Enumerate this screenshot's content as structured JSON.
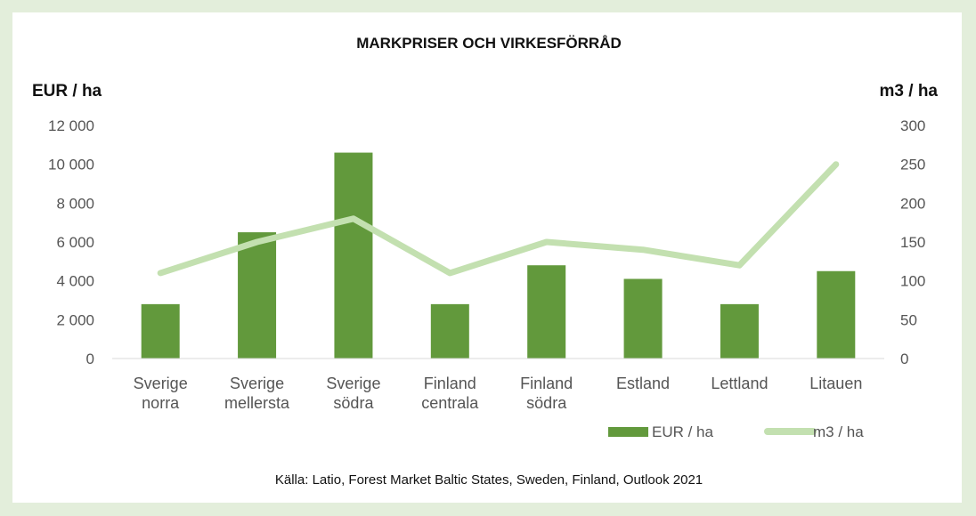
{
  "chart_data": {
    "type": "bar+line",
    "title": "MARKPRISER OCH VIRKESFÖRRÅD",
    "y_left_label": "EUR / ha",
    "y_right_label": "m3 / ha",
    "y_left_ticks": [
      "0",
      "2 000",
      "4 000",
      "6 000",
      "8 000",
      "10 000",
      "12 000"
    ],
    "y_right_ticks": [
      "0",
      "50",
      "100",
      "150",
      "200",
      "250",
      "300"
    ],
    "ylim_left": [
      0,
      12000
    ],
    "ylim_right": [
      0,
      300
    ],
    "categories": [
      [
        "Sverige",
        "norra"
      ],
      [
        "Sverige",
        "mellersta"
      ],
      [
        "Sverige",
        "södra"
      ],
      [
        "Finland",
        "centrala"
      ],
      [
        "Finland",
        "södra"
      ],
      [
        "Estland"
      ],
      [
        "Lettland"
      ],
      [
        "Litauen"
      ]
    ],
    "series": [
      {
        "name": "EUR / ha",
        "type": "bar",
        "axis": "left",
        "color": "#62993c",
        "values": [
          2800,
          6500,
          10600,
          2800,
          4800,
          4100,
          2800,
          4500
        ]
      },
      {
        "name": "m3 / ha",
        "type": "line",
        "axis": "right",
        "color": "#c3e0b0",
        "values": [
          110,
          150,
          180,
          110,
          150,
          140,
          120,
          250
        ]
      }
    ],
    "grid": false,
    "legend_position": "bottom-right",
    "source": "Källa: Latio, Forest Market Baltic States, Sweden, Finland, Outlook 2021"
  }
}
